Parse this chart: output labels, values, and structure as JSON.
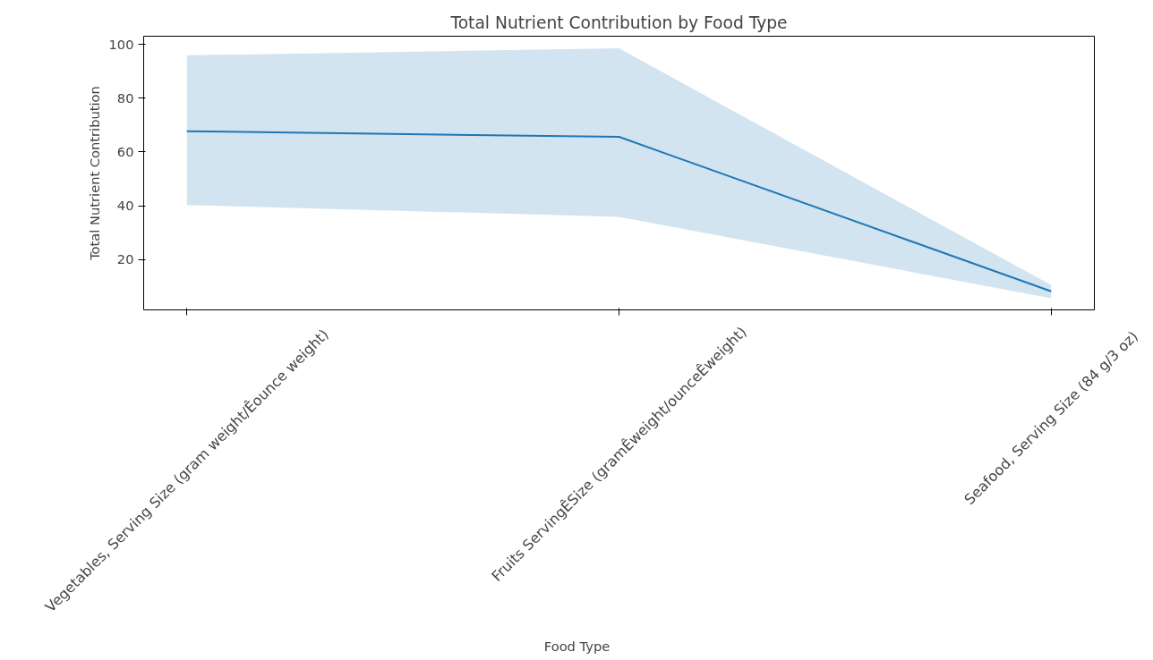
{
  "chart_data": {
    "type": "line",
    "title": "Total Nutrient Contribution by Food Type",
    "xlabel": "Food Type",
    "ylabel": "Total Nutrient Contribution",
    "categories": [
      "Vegetables, Serving Size (gram weight/Êounce weight)",
      "Fruits ServingÊSize (gramÊweight/ounceÊweight)",
      "Seafood, Serving Size (84 g/3 oz)"
    ],
    "series": [
      {
        "color": "#1f77b4",
        "values": [
          67.7,
          65.6,
          8.2
        ],
        "lower": [
          40.3,
          35.9,
          5.6
        ],
        "upper": [
          95.9,
          98.5,
          10.5
        ]
      }
    ],
    "ylim": [
      1.3,
      103
    ],
    "yticks": [
      20,
      40,
      60,
      80,
      100
    ],
    "grid": false,
    "line_style": "solid",
    "marker": "none"
  }
}
